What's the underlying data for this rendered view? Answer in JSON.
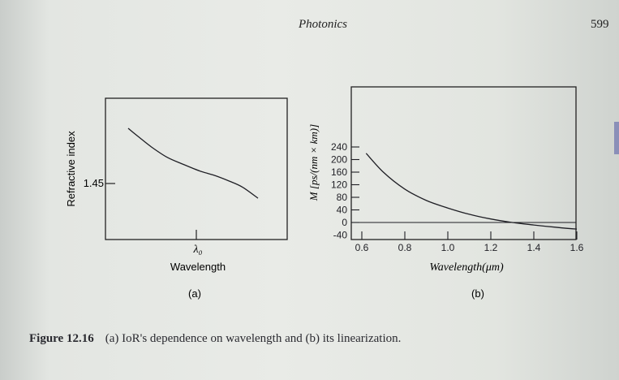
{
  "header": {
    "running_title": "Photonics",
    "page_number": "599"
  },
  "chart_data": [
    {
      "type": "line",
      "title": "",
      "sublabel": "(a)",
      "xlabel": "Wavelength",
      "ylabel": "Refractive index",
      "x_tick_labels": [
        "λ₀"
      ],
      "y_tick_labels": [
        "1.45"
      ],
      "grid": false,
      "series": [
        {
          "x": [
            0.0,
            0.08,
            0.18,
            0.3,
            0.42,
            0.55,
            0.66,
            0.78,
            0.88,
            1.0
          ],
          "y": [
            1.0,
            0.9,
            0.78,
            0.66,
            0.58,
            0.5,
            0.45,
            0.38,
            0.31,
            0.18
          ]
        }
      ]
    },
    {
      "type": "line",
      "title": "",
      "sublabel": "(b)",
      "xlabel": "Wavelength(μm)",
      "ylabel": "M [ps/(nm × km)]",
      "xlim": [
        0.55,
        1.6
      ],
      "ylim": [
        -40,
        260
      ],
      "x_ticks": [
        0.6,
        0.8,
        1.0,
        1.2,
        1.4,
        1.6
      ],
      "x_tick_labels": [
        "0.6",
        "0.8",
        "1.0",
        "1.2",
        "1.4",
        "1.6"
      ],
      "y_ticks": [
        -40,
        0,
        40,
        80,
        120,
        160,
        200,
        240
      ],
      "y_tick_labels": [
        "-40",
        "0",
        "40",
        "80",
        "120",
        "160",
        "200",
        "240"
      ],
      "grid": false,
      "series": [
        {
          "x": [
            0.62,
            0.7,
            0.8,
            0.9,
            1.0,
            1.1,
            1.2,
            1.3,
            1.4,
            1.5,
            1.6
          ],
          "y": [
            220,
            160,
            106,
            70,
            46,
            26,
            11,
            0,
            -8,
            -15,
            -21
          ]
        }
      ],
      "reference_lines": [
        0
      ]
    }
  ],
  "caption": {
    "label": "Figure 12.16",
    "text": "(a) IoR's dependence on wavelength and (b) its linearization."
  },
  "colors": {
    "ink": "#1e1e24",
    "page": "#e9ebe7"
  }
}
